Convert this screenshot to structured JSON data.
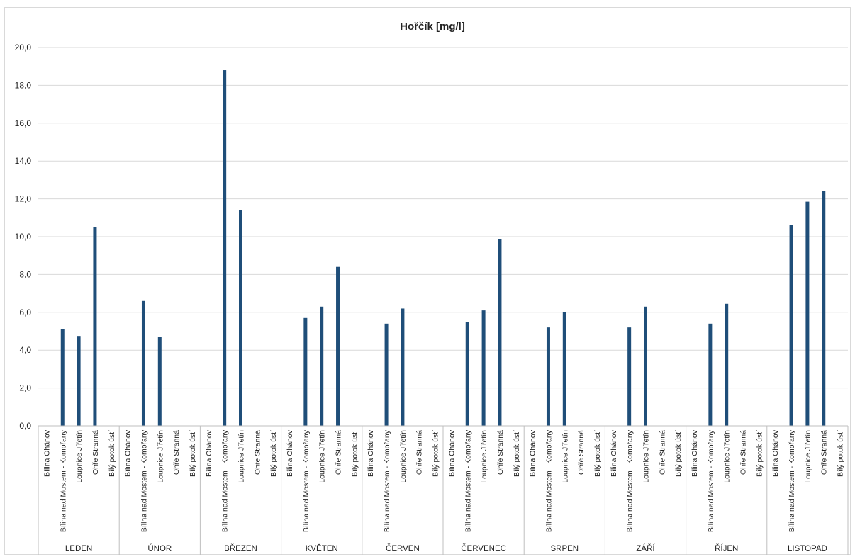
{
  "chart_data": {
    "type": "bar",
    "title": "Hořčík [mg/l]",
    "xlabel": "",
    "ylabel": "",
    "ylim": [
      0,
      20
    ],
    "yticks": [
      "0,0",
      "2,0",
      "4,0",
      "6,0",
      "8,0",
      "10,0",
      "12,0",
      "14,0",
      "16,0",
      "18,0",
      "20,0"
    ],
    "grid": true,
    "legend": "none",
    "colors": {
      "bar": "#1F4E79",
      "grid": "#D9D9D9",
      "axis": "#BFBFBF"
    },
    "stations": [
      "Bílina Ohánov",
      "Bílina nad Mostem - Komořany",
      "Loupnice Jířetín",
      "Ohře Stranná",
      "Bílý potok ústí"
    ],
    "groups": [
      {
        "label": "LEDEN",
        "values": [
          null,
          5.1,
          4.75,
          10.5,
          null
        ]
      },
      {
        "label": "ÚNOR",
        "values": [
          null,
          6.6,
          4.7,
          null,
          null
        ]
      },
      {
        "label": "BŘEZEN",
        "values": [
          null,
          18.8,
          11.4,
          null,
          null
        ]
      },
      {
        "label": "KVĚTEN",
        "values": [
          null,
          5.7,
          6.3,
          8.4,
          null
        ]
      },
      {
        "label": "ČERVEN",
        "values": [
          null,
          5.4,
          6.2,
          null,
          null
        ]
      },
      {
        "label": "ČERVENEC",
        "values": [
          null,
          5.5,
          6.1,
          9.85,
          null
        ]
      },
      {
        "label": "SRPEN",
        "values": [
          null,
          5.2,
          6.0,
          null,
          null
        ]
      },
      {
        "label": "ZÁŘÍ",
        "values": [
          null,
          5.2,
          6.3,
          null,
          null
        ]
      },
      {
        "label": "ŘÍJEN",
        "values": [
          null,
          5.4,
          6.45,
          null,
          null
        ]
      },
      {
        "label": "LISTOPAD",
        "values": [
          null,
          10.6,
          11.85,
          12.4,
          null
        ]
      }
    ]
  }
}
